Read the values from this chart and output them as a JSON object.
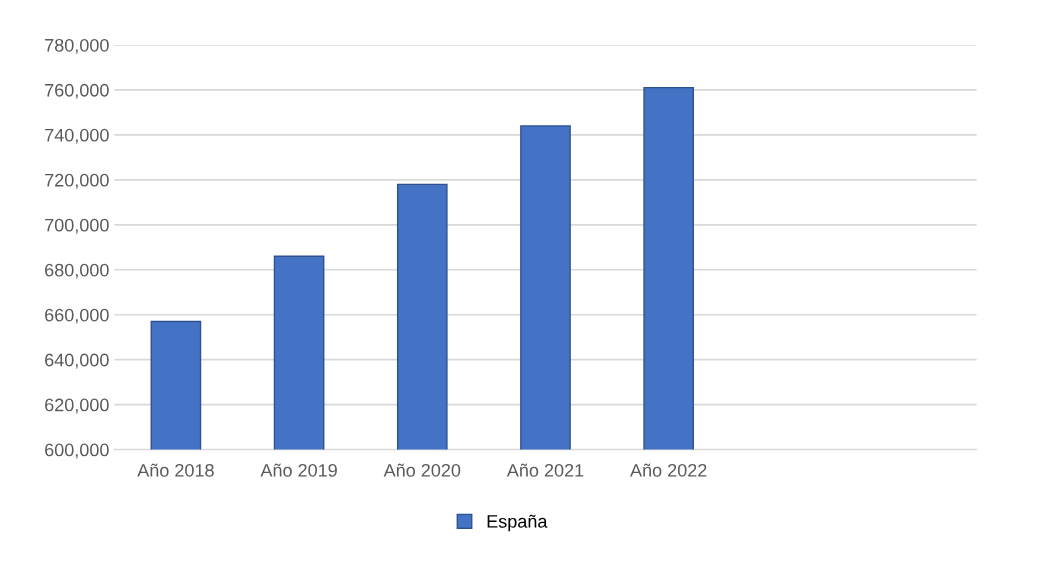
{
  "chart_data": {
    "type": "bar",
    "categories": [
      "Año 2018",
      "Año 2019",
      "Año 2020",
      "Año 2021",
      "Año 2022"
    ],
    "series": [
      {
        "name": "España",
        "color": "#4472c4",
        "values": [
          657000,
          686000,
          718000,
          744000,
          761000
        ]
      }
    ],
    "ylim": [
      600000,
      780000
    ],
    "yticks": [
      {
        "value": 600000,
        "label": "600,000"
      },
      {
        "value": 620000,
        "label": "620,000"
      },
      {
        "value": 640000,
        "label": "640,000"
      },
      {
        "value": 660000,
        "label": "660,000"
      },
      {
        "value": 680000,
        "label": "680,000"
      },
      {
        "value": 700000,
        "label": "700,000"
      },
      {
        "value": 720000,
        "label": "720,000"
      },
      {
        "value": 740000,
        "label": "740,000"
      },
      {
        "value": 760000,
        "label": "760,000"
      },
      {
        "value": 780000,
        "label": "780,000"
      }
    ],
    "grid": "y",
    "legend": "bottom"
  }
}
